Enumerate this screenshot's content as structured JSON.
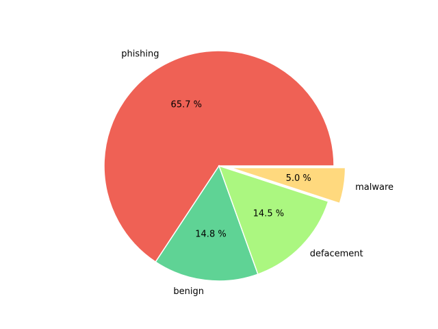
{
  "chart_data": {
    "type": "pie",
    "title": "",
    "slices": [
      {
        "label": "phishing",
        "value": 65.7,
        "pct_label": "65.7 %",
        "color": "#ef6155",
        "explode": false
      },
      {
        "label": "benign",
        "value": 14.8,
        "pct_label": "14.8 %",
        "color": "#5fd395",
        "explode": false
      },
      {
        "label": "defacement",
        "value": 14.5,
        "pct_label": "14.5 %",
        "color": "#abf780",
        "explode": false
      },
      {
        "label": "malware",
        "value": 5.0,
        "pct_label": "5.0 %",
        "color": "#ffd97e",
        "explode": true
      }
    ],
    "start_angle_deg": 0,
    "direction": "counterclockwise"
  }
}
